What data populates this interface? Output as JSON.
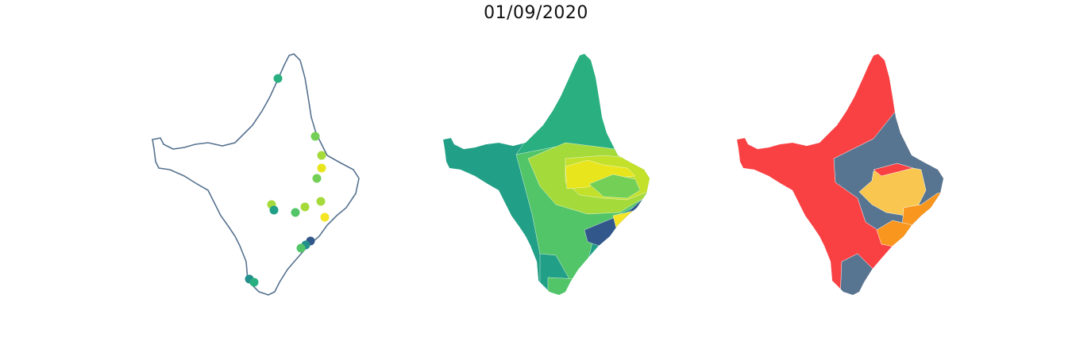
{
  "figure": {
    "title": "01/09/2020"
  },
  "colors": {
    "outline": "#56728f",
    "viridis": [
      "#31578b",
      "#24908b",
      "#22a087",
      "#2aaf80",
      "#52c568",
      "#73cf56",
      "#a5da3b",
      "#c3e02b",
      "#e8e51c",
      "#f5e524"
    ],
    "risk_red": "#f94144",
    "risk_slate": "#577590",
    "risk_orange": "#f8961e",
    "risk_yellow": "#f9c74f"
  },
  "panels": [
    {
      "kind": "station-points",
      "marker_count": 17
    },
    {
      "kind": "interpolated-choropleth",
      "palette": "viridis"
    },
    {
      "kind": "categorical-choropleth",
      "palette": [
        "red",
        "slate",
        "orange",
        "yellow"
      ]
    }
  ]
}
